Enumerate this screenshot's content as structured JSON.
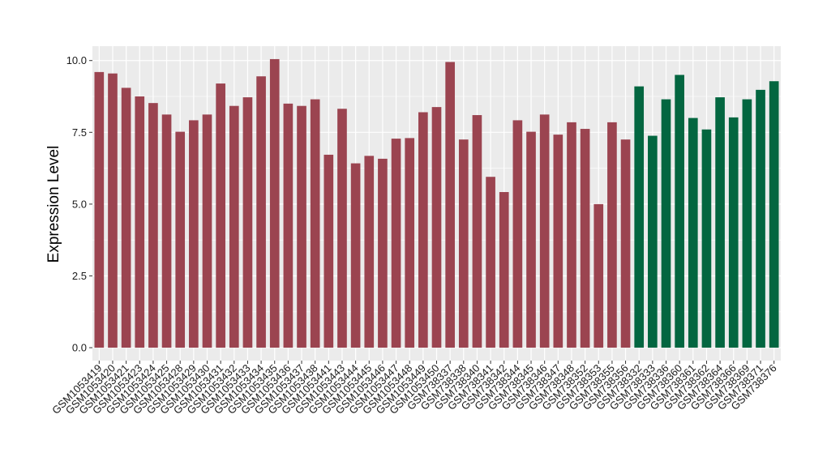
{
  "chart_data": {
    "type": "bar",
    "xlabel": "",
    "ylabel": "Expression Level",
    "ylim": [
      -0.45,
      10.5
    ],
    "yticks": [
      0.0,
      2.5,
      5.0,
      7.5,
      10.0
    ],
    "ytick_labels": [
      "0.0",
      "2.5",
      "5.0",
      "7.5",
      "10.0"
    ],
    "grid": true,
    "background": "#ebebeb",
    "gridline_color": "#ffffff",
    "categories": [
      "GSM1053419",
      "GSM1053420",
      "GSM1053421",
      "GSM1053423",
      "GSM1053424",
      "GSM1053425",
      "GSM1053428",
      "GSM1053429",
      "GSM1053430",
      "GSM1053431",
      "GSM1053432",
      "GSM1053433",
      "GSM1053434",
      "GSM1053435",
      "GSM1053436",
      "GSM1053437",
      "GSM1053438",
      "GSM1053441",
      "GSM1053443",
      "GSM1053444",
      "GSM1053445",
      "GSM1053446",
      "GSM1053447",
      "GSM1053448",
      "GSM1053449",
      "GSM1053450",
      "GSM738337",
      "GSM738338",
      "GSM738340",
      "GSM738341",
      "GSM738342",
      "GSM738344",
      "GSM738345",
      "GSM738346",
      "GSM738347",
      "GSM738348",
      "GSM738352",
      "GSM738353",
      "GSM738355",
      "GSM738356",
      "GSM738332",
      "GSM738333",
      "GSM738336",
      "GSM738360",
      "GSM738361",
      "GSM738362",
      "GSM738364",
      "GSM738366",
      "GSM738369",
      "GSM738371",
      "GSM738376"
    ],
    "values": [
      9.6,
      9.55,
      9.05,
      8.75,
      8.52,
      8.12,
      7.52,
      7.92,
      8.12,
      9.2,
      8.42,
      8.72,
      9.45,
      10.05,
      8.5,
      8.42,
      8.65,
      6.72,
      8.32,
      6.42,
      6.68,
      6.58,
      7.28,
      7.3,
      8.2,
      8.38,
      9.95,
      7.25,
      8.1,
      5.95,
      5.42,
      7.92,
      7.52,
      8.12,
      7.42,
      7.85,
      7.62,
      5.0,
      7.85,
      7.25,
      9.1,
      7.38,
      8.65,
      9.5,
      8.0,
      7.6,
      8.72,
      8.02,
      8.65,
      8.98,
      9.28
    ],
    "groups": [
      "a",
      "a",
      "a",
      "a",
      "a",
      "a",
      "a",
      "a",
      "a",
      "a",
      "a",
      "a",
      "a",
      "a",
      "a",
      "a",
      "a",
      "a",
      "a",
      "a",
      "a",
      "a",
      "a",
      "a",
      "a",
      "a",
      "a",
      "a",
      "a",
      "a",
      "a",
      "a",
      "a",
      "a",
      "a",
      "a",
      "a",
      "a",
      "a",
      "a",
      "b",
      "b",
      "b",
      "b",
      "b",
      "b",
      "b",
      "b",
      "b",
      "b",
      "b"
    ],
    "group_colors": {
      "a": "#9b4450",
      "b": "#036640"
    }
  }
}
